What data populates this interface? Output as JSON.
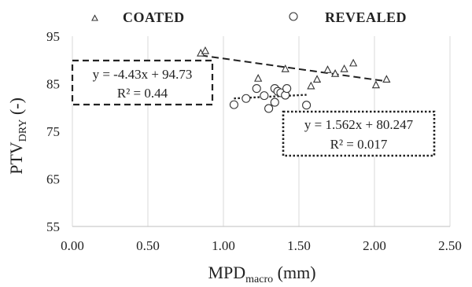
{
  "chart_data": {
    "type": "scatter",
    "xlabel_main": "MPD",
    "xlabel_sub": "macro",
    "xlabel_unit": " (mm)",
    "ylabel_main": "PTV",
    "ylabel_sub": "DRY",
    "ylabel_unit": " (-)",
    "xlim": [
      0,
      2.5
    ],
    "ylim": [
      55,
      95
    ],
    "xticks": [
      0.0,
      0.5,
      1.0,
      1.5,
      2.0,
      2.5
    ],
    "xtick_labels": [
      "0.00",
      "0.50",
      "1.00",
      "1.50",
      "2.00",
      "2.50"
    ],
    "yticks": [
      55,
      65,
      75,
      85,
      95
    ],
    "ytick_labels": [
      "55",
      "65",
      "75",
      "85",
      "95"
    ],
    "grid": "vertical",
    "legend_position": "top",
    "series": [
      {
        "name": "COATED",
        "marker": "triangle",
        "points": [
          [
            0.85,
            91.5
          ],
          [
            0.88,
            92.0
          ],
          [
            1.23,
            86.2
          ],
          [
            1.41,
            88.2
          ],
          [
            1.58,
            84.6
          ],
          [
            1.62,
            86.0
          ],
          [
            1.69,
            88.0
          ],
          [
            1.74,
            87.2
          ],
          [
            1.8,
            88.2
          ],
          [
            1.86,
            89.4
          ],
          [
            2.01,
            84.8
          ],
          [
            2.08,
            86.0
          ]
        ],
        "trendline": {
          "style": "dashed",
          "slope": -4.43,
          "intercept": 94.73,
          "x_range": [
            0.85,
            2.08
          ],
          "equation": "y = -4.43x + 94.73",
          "r2": "R² = 0.44"
        }
      },
      {
        "name": "REVEALED",
        "marker": "circle",
        "points": [
          [
            1.07,
            80.6
          ],
          [
            1.15,
            81.9
          ],
          [
            1.22,
            84.0
          ],
          [
            1.27,
            82.5
          ],
          [
            1.3,
            79.8
          ],
          [
            1.34,
            84.0
          ],
          [
            1.34,
            81.1
          ],
          [
            1.36,
            83.4
          ],
          [
            1.38,
            83.1
          ],
          [
            1.41,
            82.6
          ],
          [
            1.42,
            84.0
          ],
          [
            1.55,
            80.5
          ]
        ],
        "trendline": {
          "style": "dotted",
          "slope": 1.562,
          "intercept": 80.247,
          "x_range": [
            1.07,
            1.55
          ],
          "equation": "y = 1.562x + 80.247",
          "r2": "R² = 0.017"
        }
      }
    ]
  }
}
